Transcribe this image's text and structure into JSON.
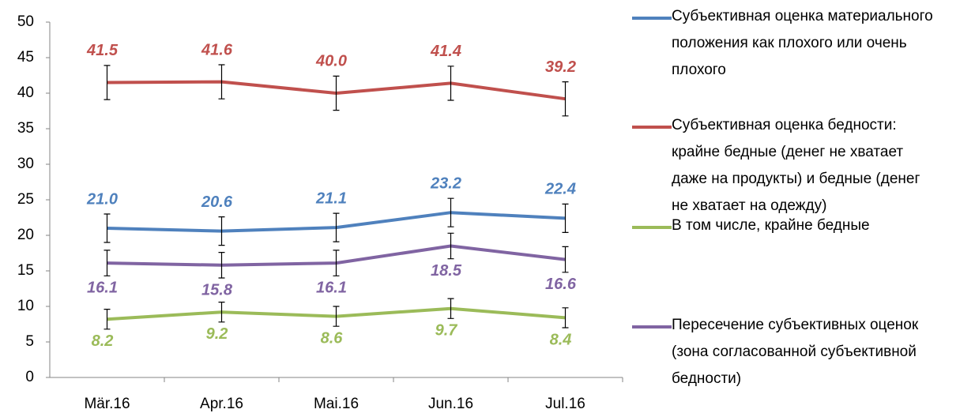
{
  "chart_data": {
    "type": "line",
    "categories": [
      "Mär.16",
      "Apr.16",
      "Mai.16",
      "Jun.16",
      "Jul.16"
    ],
    "ylim": [
      0,
      50
    ],
    "yticks": [
      0,
      5,
      10,
      15,
      20,
      25,
      30,
      35,
      40,
      45,
      50
    ],
    "series": [
      {
        "name": "Субъективная оценка материального положения как плохого или очень плохого",
        "color": "#4f81bd",
        "label_position": "above",
        "values": [
          21.0,
          20.6,
          21.1,
          23.2,
          22.4
        ],
        "value_labels": [
          "21.0",
          "20.6",
          "21.1",
          "23.2",
          "22.4"
        ],
        "errors": [
          2.0,
          2.0,
          2.0,
          2.0,
          2.0
        ]
      },
      {
        "name": "Субъективная оценка бедности: крайне бедные (денег не хватает даже на продукты) и бедные (денег не хватает на одежду)",
        "color": "#c0504d",
        "label_position": "above",
        "values": [
          41.5,
          41.6,
          40.0,
          41.4,
          39.2
        ],
        "value_labels": [
          "41.5",
          "41.6",
          "40.0",
          "41.4",
          "39.2"
        ],
        "errors": [
          2.4,
          2.4,
          2.4,
          2.4,
          2.4
        ]
      },
      {
        "name": "В том числе, крайне бедные",
        "color": "#9bbb59",
        "label_position": "below",
        "values": [
          8.2,
          9.2,
          8.6,
          9.7,
          8.4
        ],
        "value_labels": [
          "8.2",
          "9.2",
          "8.6",
          "9.7",
          "8.4"
        ],
        "errors": [
          1.4,
          1.4,
          1.4,
          1.4,
          1.4
        ]
      },
      {
        "name": "Пересечение субъективных оценок (зона согласованной субъективной бедности)",
        "color": "#8064a2",
        "label_position": "below",
        "values": [
          16.1,
          15.8,
          16.1,
          18.5,
          16.6
        ],
        "value_labels": [
          "16.1",
          "15.8",
          "16.1",
          "18.5",
          "16.6"
        ],
        "errors": [
          1.8,
          1.8,
          1.8,
          1.8,
          1.8
        ]
      }
    ]
  }
}
